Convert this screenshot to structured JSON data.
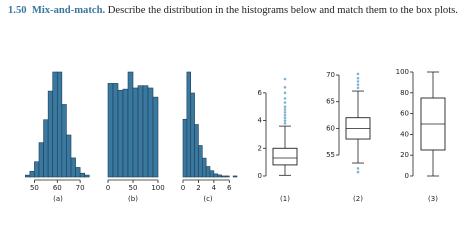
{
  "header": {
    "number": "1.50",
    "title": "Mix-and-match.",
    "text": "Describe the distribution in the histograms below and match them to the box plots."
  },
  "chart_data": [
    {
      "type": "histogram",
      "label": "(a)",
      "color": "#3a78a0",
      "xlim": [
        45,
        80
      ],
      "xticks": [
        50,
        60,
        70
      ],
      "bins": [
        46,
        48,
        50,
        52,
        54,
        56,
        58,
        60,
        62,
        64,
        66,
        68,
        70,
        72,
        74
      ],
      "values": [
        1,
        3,
        8,
        18,
        30,
        45,
        55,
        55,
        38,
        22,
        10,
        5,
        2,
        1
      ]
    },
    {
      "type": "histogram",
      "label": "(b)",
      "color": "#3a78a0",
      "xlim": [
        0,
        100
      ],
      "xticks": [
        0,
        50,
        100
      ],
      "bins": [
        0,
        10,
        20,
        30,
        40,
        50,
        60,
        70,
        80,
        90,
        100
      ],
      "values": [
        82,
        82,
        76,
        77,
        92,
        78,
        80,
        80,
        78,
        70
      ]
    },
    {
      "type": "histogram",
      "label": "(c)",
      "color": "#3a78a0",
      "xlim": [
        0,
        7
      ],
      "xticks": [
        0,
        2,
        4,
        6
      ],
      "bins": [
        0,
        0.5,
        1,
        1.5,
        2,
        2.5,
        3,
        3.5,
        4,
        4.5,
        5,
        5.5,
        6,
        6.5,
        7
      ],
      "values": [
        55,
        100,
        80,
        50,
        30,
        18,
        10,
        6,
        3,
        2,
        1,
        1,
        0,
        1
      ]
    },
    {
      "type": "box",
      "label": "(1)",
      "color": "#7fb3d5",
      "ylim": [
        0,
        7
      ],
      "yticks": [
        0,
        2,
        4,
        6
      ],
      "whisker_low": 0.05,
      "q1": 0.8,
      "median": 1.3,
      "q3": 2.0,
      "whisker_high": 3.6,
      "outliers": [
        3.8,
        4.0,
        4.2,
        4.4,
        4.6,
        4.8,
        5.0,
        5.3,
        5.6,
        6.0,
        6.4,
        7.0
      ]
    },
    {
      "type": "box",
      "label": "(2)",
      "color": "#7fb3d5",
      "ylim": [
        50,
        71
      ],
      "yticks": [
        55,
        60,
        65,
        70
      ],
      "whisker_low": 53.5,
      "q1": 58,
      "median": 60,
      "q3": 62,
      "whisker_high": 67,
      "outliers": [
        52.5,
        51.8,
        67.6,
        68.2,
        68.8,
        69.4,
        70.2
      ]
    },
    {
      "type": "box",
      "label": "(3)",
      "color": "#7fb3d5",
      "ylim": [
        0,
        100
      ],
      "yticks": [
        0,
        20,
        40,
        60,
        80,
        100
      ],
      "whisker_low": 0,
      "q1": 25,
      "median": 50,
      "q3": 75,
      "whisker_high": 100,
      "outliers": []
    }
  ]
}
